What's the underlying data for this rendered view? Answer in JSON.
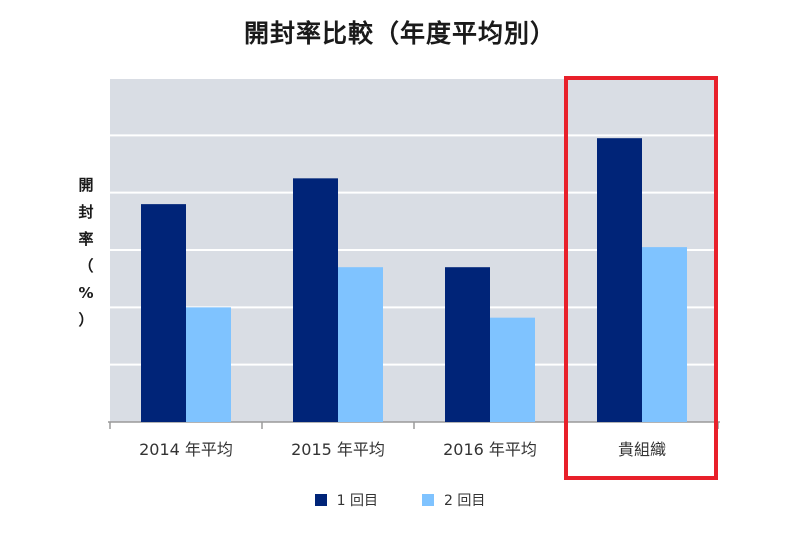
{
  "chart_data": {
    "type": "bar",
    "title": "開封率比較（年度平均別）",
    "ylabel": "開封率（%）",
    "categories": [
      "2014 年平均",
      "2015 年平均",
      "2016 年平均",
      "貴組織"
    ],
    "series": [
      {
        "name": "1 回目",
        "color": "#002478",
        "values": [
          3.8,
          4.25,
          2.7,
          4.95
        ]
      },
      {
        "name": "2 回目",
        "color": "#7fc3ff",
        "values": [
          2.0,
          2.7,
          1.82,
          3.05
        ]
      }
    ],
    "ylim": [
      0,
      6
    ],
    "grid": true,
    "highlight_category": "貴組織",
    "highlight_color": "#e8202a",
    "legend_position": "bottom"
  }
}
